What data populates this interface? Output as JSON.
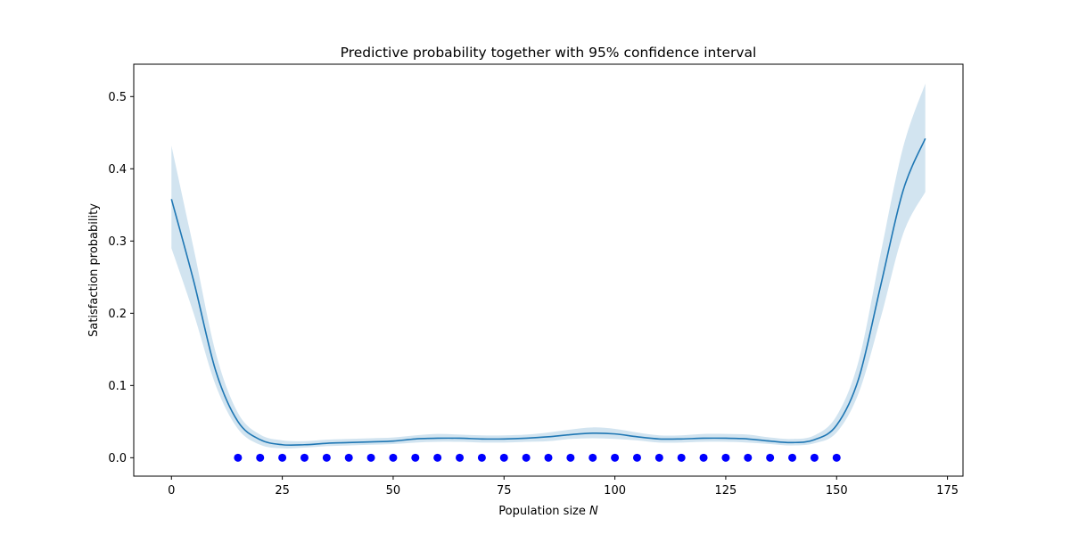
{
  "chart_data": {
    "type": "line",
    "title": "Predictive probability together with 95% confidence interval",
    "xlabel": "Population size",
    "xlabel_var": "N",
    "ylabel": "Satisfaction probability",
    "xlim": [
      -8.5,
      178.5
    ],
    "ylim": [
      -0.0255,
      0.5448
    ],
    "xticks": [
      0,
      25,
      50,
      75,
      100,
      125,
      150,
      175
    ],
    "yticks": [
      0.0,
      0.1,
      0.2,
      0.3,
      0.4,
      0.5
    ],
    "xtick_labels": [
      "0",
      "25",
      "50",
      "75",
      "100",
      "125",
      "150",
      "175"
    ],
    "ytick_labels": [
      "0.0",
      "0.1",
      "0.2",
      "0.3",
      "0.4",
      "0.5"
    ],
    "grid": false,
    "colors": {
      "line": "#1f77b4",
      "band": "#1f77b4",
      "band_opacity": 0.2,
      "points": "#0000ff"
    },
    "prediction": {
      "x": [
        0,
        5,
        10,
        15,
        20,
        25,
        30,
        35,
        40,
        45,
        50,
        55,
        60,
        65,
        70,
        75,
        80,
        85,
        90,
        95,
        100,
        105,
        110,
        115,
        120,
        125,
        130,
        135,
        140,
        145,
        150,
        155,
        160,
        165,
        170
      ],
      "mean": [
        0.358,
        0.245,
        0.12,
        0.05,
        0.025,
        0.018,
        0.018,
        0.02,
        0.021,
        0.022,
        0.023,
        0.026,
        0.027,
        0.027,
        0.026,
        0.026,
        0.027,
        0.029,
        0.032,
        0.034,
        0.033,
        0.029,
        0.026,
        0.026,
        0.027,
        0.027,
        0.026,
        0.023,
        0.021,
        0.025,
        0.045,
        0.11,
        0.24,
        0.37,
        0.442
      ],
      "lower": [
        0.29,
        0.2,
        0.1,
        0.04,
        0.018,
        0.013,
        0.014,
        0.016,
        0.017,
        0.018,
        0.019,
        0.021,
        0.022,
        0.022,
        0.021,
        0.021,
        0.022,
        0.023,
        0.026,
        0.027,
        0.026,
        0.024,
        0.021,
        0.021,
        0.022,
        0.022,
        0.021,
        0.019,
        0.017,
        0.02,
        0.035,
        0.09,
        0.195,
        0.31,
        0.368
      ],
      "upper": [
        0.432,
        0.29,
        0.145,
        0.062,
        0.032,
        0.024,
        0.023,
        0.025,
        0.026,
        0.027,
        0.028,
        0.031,
        0.033,
        0.032,
        0.031,
        0.031,
        0.032,
        0.035,
        0.039,
        0.042,
        0.04,
        0.035,
        0.031,
        0.031,
        0.033,
        0.033,
        0.032,
        0.028,
        0.026,
        0.031,
        0.058,
        0.135,
        0.285,
        0.43,
        0.518
      ]
    },
    "observations": {
      "x": [
        15,
        20,
        25,
        30,
        35,
        40,
        45,
        50,
        55,
        60,
        65,
        70,
        75,
        80,
        85,
        90,
        95,
        100,
        105,
        110,
        115,
        120,
        125,
        130,
        135,
        140,
        145,
        150
      ],
      "y": [
        0,
        0,
        0,
        0,
        0,
        0,
        0,
        0,
        0,
        0,
        0,
        0,
        0,
        0,
        0,
        0,
        0,
        0,
        0,
        0,
        0,
        0,
        0,
        0,
        0,
        0,
        0,
        0
      ]
    }
  }
}
